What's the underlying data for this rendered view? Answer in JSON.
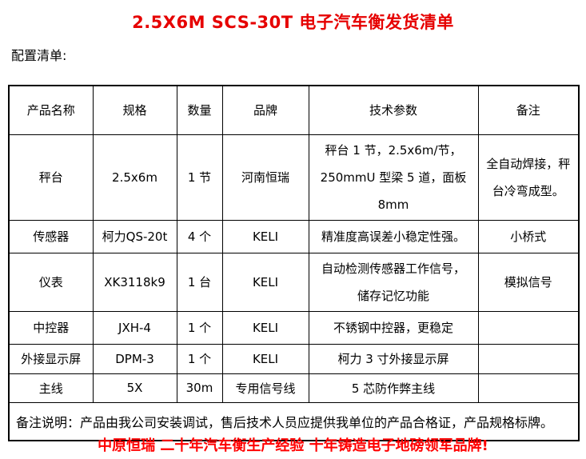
{
  "document": {
    "title": "2.5X6M SCS-30T 电子汽车衡发货清单",
    "section_label": "配置清单:",
    "footer_slogan": "中原恒瑞 二十年汽车衡生产经验 十年铸造电子地磅领军品牌!"
  },
  "colors": {
    "title_red": "#e60000",
    "slogan_red": "#ff0000",
    "text": "#000000",
    "border": "#000000",
    "background": "#ffffff"
  },
  "table": {
    "headers": {
      "product": "产品名称",
      "spec": "规格",
      "qty": "数量",
      "brand": "品牌",
      "params": "技术参数",
      "note": "备注"
    },
    "rows": [
      {
        "name": "秤台",
        "spec": "2.5x6m",
        "qty": "1 节",
        "brand": "河南恒瑞",
        "params": "秤台 1 节，2.5x6m/节，\n250mmU 型梁 5 道，面板 8mm",
        "note": "全自动焊接，秤\n台冷弯成型。"
      },
      {
        "name": "传感器",
        "spec": "柯力QS-20t",
        "qty": "4 个",
        "brand": "KELI",
        "params": "精准度高误差小稳定性强。",
        "note": "小桥式"
      },
      {
        "name": "仪表",
        "spec": "XK3118k9",
        "qty": "1 台",
        "brand": "KELI",
        "params": "自动检测传感器工作信号，\n储存记忆功能",
        "note": "模拟信号"
      },
      {
        "name": "中控器",
        "spec": "JXH-4",
        "qty": "1 个",
        "brand": "KELI",
        "params": "不锈钢中控器，更稳定",
        "note": ""
      },
      {
        "name": "外接显示屏",
        "spec": "DPM-3",
        "qty": "1 个",
        "brand": "KELI",
        "params": "柯力 3 寸外接显示屏",
        "note": ""
      },
      {
        "name": "主线",
        "spec": "5X",
        "qty": "30m",
        "brand": "专用信号线",
        "params": "5 芯防作弊主线",
        "note": ""
      }
    ],
    "remark": "备注说明：产品由我公司安装调试，售后技术人员应提供我单位的产品合格证，产品规格标牌。"
  }
}
